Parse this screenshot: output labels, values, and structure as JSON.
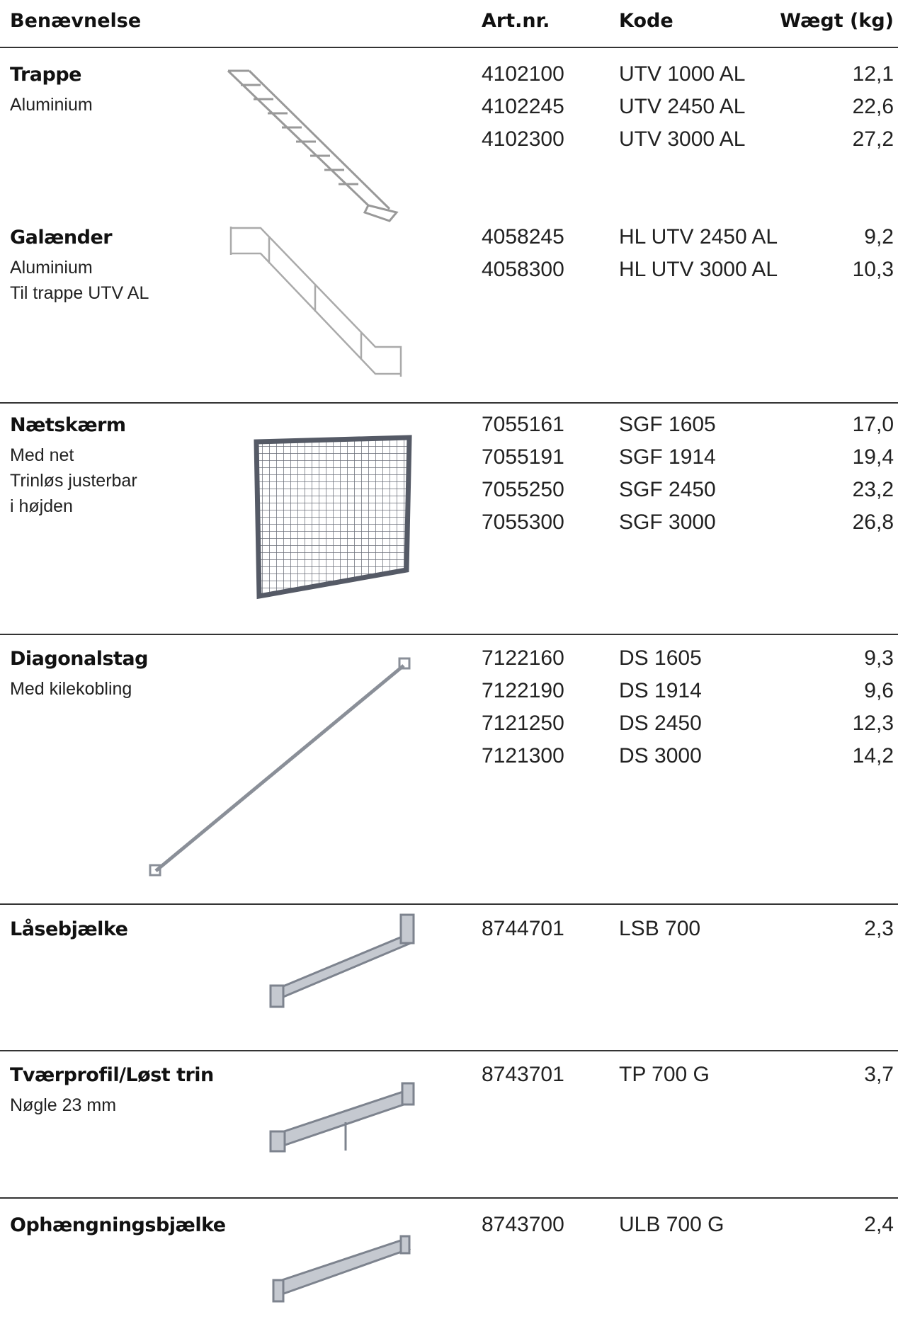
{
  "header": {
    "columns": [
      "Benævnelse",
      "Art.nr.",
      "Kode",
      "Wægt (kg)"
    ]
  },
  "sections": [
    {
      "title": "Trappe",
      "description": [
        "Aluminium"
      ],
      "rows": [
        [
          "4102100",
          "UTV 1000 AL",
          "12,1"
        ],
        [
          "4102245",
          "UTV 2450 AL",
          "22,6"
        ],
        [
          "4102300",
          "UTV 3000 AL",
          "27,2"
        ]
      ]
    },
    {
      "title": "Galænder",
      "description": [
        "Aluminium",
        "Til trappe UTV AL"
      ],
      "rows": [
        [
          "4058245",
          "HL UTV 2450 AL",
          "9,2"
        ],
        [
          "4058300",
          "HL UTV 3000 AL",
          "10,3"
        ]
      ]
    },
    {
      "title": "Nætskærm",
      "description": [
        "Med net",
        "Trinløs justerbar",
        "i højden"
      ],
      "rows": [
        [
          "7055161",
          "SGF 1605",
          "17,0"
        ],
        [
          "7055191",
          "SGF 1914",
          "19,4"
        ],
        [
          "7055250",
          "SGF 2450",
          "23,2"
        ],
        [
          "7055300",
          "SGF 3000",
          "26,8"
        ]
      ]
    },
    {
      "title": "Diagonalstag",
      "description": [
        "Med kilekobling"
      ],
      "rows": [
        [
          "7122160",
          "DS 1605",
          "9,3"
        ],
        [
          "7122190",
          "DS 1914",
          "9,6"
        ],
        [
          "7121250",
          "DS 2450",
          "12,3"
        ],
        [
          "7121300",
          "DS 3000",
          "14,2"
        ]
      ]
    },
    {
      "title": "Låsebjælke",
      "description": [],
      "rows": [
        [
          "8744701",
          "LSB 700",
          "2,3"
        ]
      ]
    },
    {
      "title": "Tværprofil/Løst trin",
      "description": [
        "Nøgle 23 mm"
      ],
      "rows": [
        [
          "8743701",
          "TP 700 G",
          "3,7"
        ]
      ]
    },
    {
      "title": "Ophængningsbjælke",
      "description": [],
      "rows": [
        [
          "8743700",
          "ULB 700 G",
          "2,4"
        ]
      ]
    }
  ]
}
